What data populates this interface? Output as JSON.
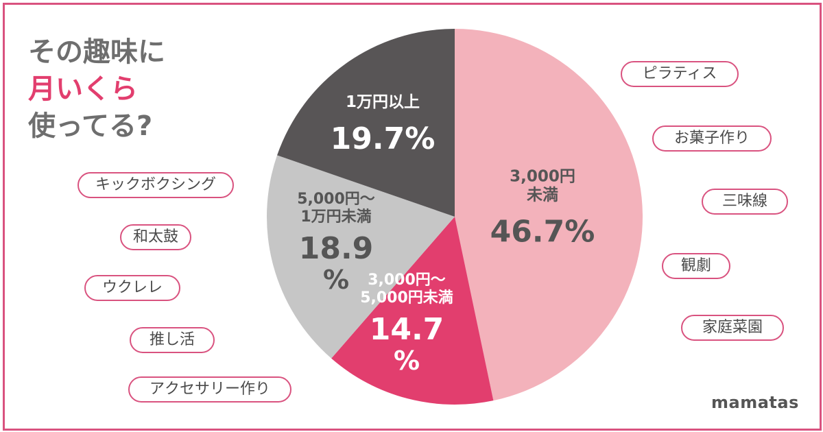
{
  "headline": {
    "line1": "その趣味に",
    "line2": "月いくら",
    "line3": "使ってる?"
  },
  "chart_data": {
    "type": "pie",
    "slices": [
      {
        "label_lines": [
          "3,000円",
          "未満"
        ],
        "value": 46.7,
        "value_text": "46.7%",
        "color": "#f3b2bb",
        "text_color": "#555555"
      },
      {
        "label_lines": [
          "3,000円〜",
          "5,000円未満"
        ],
        "value": 14.7,
        "value_text": "14.7%",
        "color": "#e23e6e",
        "text_color": "#ffffff"
      },
      {
        "label_lines": [
          "5,000円〜",
          "1万円未満"
        ],
        "value": 18.9,
        "value_text": "18.9%",
        "color": "#c6c6c6",
        "text_color": "#555555"
      },
      {
        "label_lines": [
          "1万円以上"
        ],
        "value": 19.7,
        "value_text": "19.7%",
        "color": "#585556",
        "text_color": "#ffffff"
      }
    ]
  },
  "hobbies": {
    "right": [
      "ピラティス",
      "お菓子作り",
      "三味線",
      "観劇",
      "家庭菜園"
    ],
    "left": [
      "キックボクシング",
      "和太鼓",
      "ウクレレ",
      "推し活",
      "アクセサリー作り"
    ]
  },
  "brand": "mamatas",
  "colors": {
    "border": "#d9527f",
    "accent": "#e23e6e",
    "text": "#6e6e6e"
  }
}
